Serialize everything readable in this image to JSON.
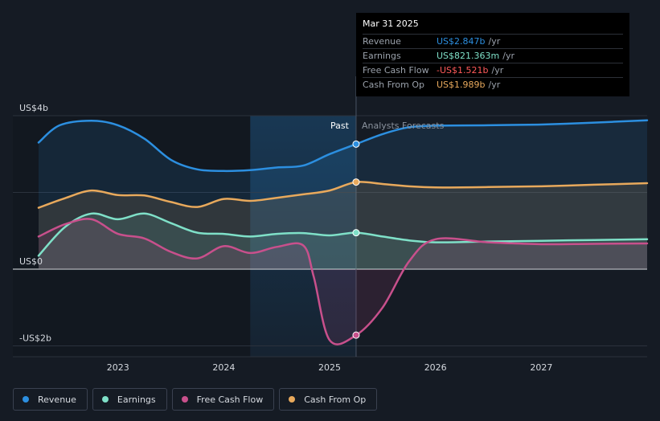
{
  "chart_data": {
    "type": "area",
    "y_ticks": [
      {
        "value": 4,
        "label": "US$4b"
      },
      {
        "value": 0,
        "label": "US$0"
      },
      {
        "value": -2,
        "label": "-US$2b"
      }
    ],
    "x_ticks": [
      {
        "value": 2023,
        "label": "2023"
      },
      {
        "value": 2024,
        "label": "2024"
      },
      {
        "value": 2025,
        "label": "2025"
      },
      {
        "value": 2026,
        "label": "2026"
      },
      {
        "value": 2027,
        "label": "2027"
      }
    ],
    "xlim": [
      2022.25,
      2028.0
    ],
    "ylim": [
      -2.3,
      4.0
    ],
    "past_label": "Past",
    "forecast_label": "Analysts Forecasts",
    "divider_x": 2025.25,
    "shade_start_x": 2024.25,
    "series": [
      {
        "name": "Revenue",
        "color": "#2c8fe0",
        "points": [
          [
            2022.25,
            3.3
          ],
          [
            2022.45,
            3.75
          ],
          [
            2022.75,
            3.87
          ],
          [
            2023.0,
            3.75
          ],
          [
            2023.25,
            3.4
          ],
          [
            2023.5,
            2.85
          ],
          [
            2023.75,
            2.6
          ],
          [
            2024.0,
            2.56
          ],
          [
            2024.25,
            2.58
          ],
          [
            2024.5,
            2.65
          ],
          [
            2024.75,
            2.7
          ],
          [
            2025.0,
            3.0
          ],
          [
            2025.25,
            3.26
          ],
          [
            2025.5,
            3.52
          ],
          [
            2025.75,
            3.7
          ],
          [
            2026.0,
            3.74
          ],
          [
            2026.5,
            3.75
          ],
          [
            2027.0,
            3.77
          ],
          [
            2027.5,
            3.82
          ],
          [
            2028.0,
            3.88
          ]
        ]
      },
      {
        "name": "Cash From Op",
        "color": "#e8a95c",
        "points": [
          [
            2022.25,
            1.6
          ],
          [
            2022.5,
            1.85
          ],
          [
            2022.75,
            2.05
          ],
          [
            2023.0,
            1.93
          ],
          [
            2023.25,
            1.92
          ],
          [
            2023.5,
            1.75
          ],
          [
            2023.75,
            1.62
          ],
          [
            2024.0,
            1.83
          ],
          [
            2024.25,
            1.78
          ],
          [
            2024.5,
            1.86
          ],
          [
            2024.75,
            1.95
          ],
          [
            2025.0,
            2.05
          ],
          [
            2025.25,
            2.27
          ],
          [
            2025.5,
            2.22
          ],
          [
            2025.75,
            2.16
          ],
          [
            2026.0,
            2.13
          ],
          [
            2026.5,
            2.14
          ],
          [
            2027.0,
            2.16
          ],
          [
            2027.5,
            2.2
          ],
          [
            2028.0,
            2.24
          ]
        ]
      },
      {
        "name": "Earnings",
        "color": "#7fe0c8",
        "points": [
          [
            2022.25,
            0.35
          ],
          [
            2022.5,
            1.1
          ],
          [
            2022.75,
            1.45
          ],
          [
            2023.0,
            1.3
          ],
          [
            2023.25,
            1.45
          ],
          [
            2023.5,
            1.2
          ],
          [
            2023.75,
            0.95
          ],
          [
            2024.0,
            0.92
          ],
          [
            2024.25,
            0.85
          ],
          [
            2024.5,
            0.92
          ],
          [
            2024.75,
            0.94
          ],
          [
            2025.0,
            0.88
          ],
          [
            2025.25,
            0.95
          ],
          [
            2025.5,
            0.85
          ],
          [
            2025.75,
            0.75
          ],
          [
            2026.0,
            0.7
          ],
          [
            2026.5,
            0.72
          ],
          [
            2027.0,
            0.74
          ],
          [
            2027.5,
            0.76
          ],
          [
            2028.0,
            0.78
          ]
        ]
      },
      {
        "name": "Free Cash Flow",
        "color": "#c8508c",
        "points": [
          [
            2022.25,
            0.85
          ],
          [
            2022.5,
            1.17
          ],
          [
            2022.75,
            1.3
          ],
          [
            2023.0,
            0.92
          ],
          [
            2023.25,
            0.8
          ],
          [
            2023.5,
            0.45
          ],
          [
            2023.75,
            0.28
          ],
          [
            2024.0,
            0.6
          ],
          [
            2024.25,
            0.42
          ],
          [
            2024.5,
            0.58
          ],
          [
            2024.75,
            0.62
          ],
          [
            2024.85,
            -0.2
          ],
          [
            2025.0,
            -1.85
          ],
          [
            2025.25,
            -1.72
          ],
          [
            2025.5,
            -1.0
          ],
          [
            2025.75,
            0.2
          ],
          [
            2026.0,
            0.78
          ],
          [
            2026.5,
            0.7
          ],
          [
            2027.0,
            0.65
          ],
          [
            2027.5,
            0.66
          ],
          [
            2028.0,
            0.67
          ]
        ]
      }
    ],
    "highlight_x": 2025.25
  },
  "tooltip": {
    "date": "Mar 31 2025",
    "rows": [
      {
        "label": "Revenue",
        "value": "US$2.847b",
        "unit": "/yr",
        "color": "#2c8fe0"
      },
      {
        "label": "Earnings",
        "value": "US$821.363m",
        "unit": "/yr",
        "color": "#7fe0c8"
      },
      {
        "label": "Free Cash Flow",
        "value": "-US$1.521b",
        "unit": "/yr",
        "color": "#ff5a5a"
      },
      {
        "label": "Cash From Op",
        "value": "US$1.989b",
        "unit": "/yr",
        "color": "#e8a95c"
      }
    ]
  },
  "legend": [
    {
      "label": "Revenue",
      "color": "#2c8fe0"
    },
    {
      "label": "Earnings",
      "color": "#7fe0c8"
    },
    {
      "label": "Free Cash Flow",
      "color": "#c8508c"
    },
    {
      "label": "Cash From Op",
      "color": "#e8a95c"
    }
  ]
}
